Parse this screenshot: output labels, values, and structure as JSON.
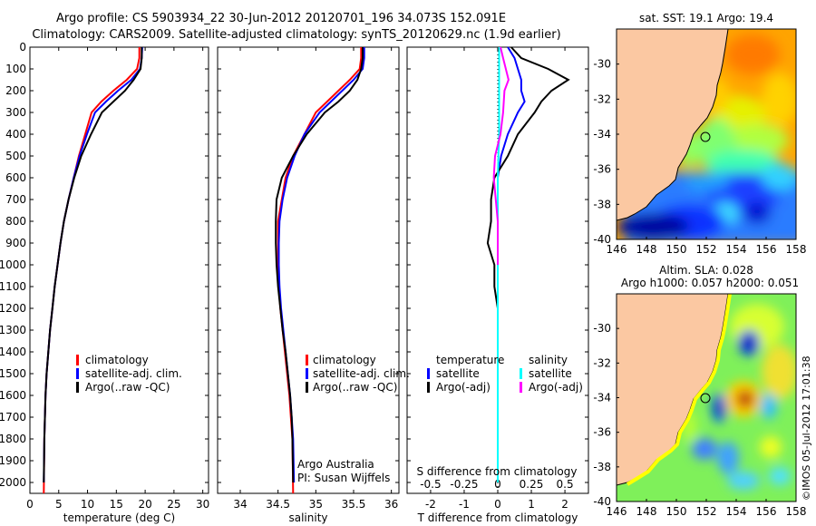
{
  "header": {
    "line1": "Argo profile: CS 5903934_22 30-Jun-2012 20120701_196 34.073S 152.091E",
    "line2": "Climatology: CARS2009. Satellite-adjusted climatology: synTS_20120629.nc (1.9d earlier)"
  },
  "footer": {
    "stamp": "©IMOS 05-Jul-2012 17:01:38"
  },
  "colors": {
    "climatology": "#ff0000",
    "satellite": "#0000ff",
    "argo": "#000000",
    "sat_diff_salinity": "#00ffff",
    "argo_diff_salinity": "#ff00ff",
    "land": "#fbc8a2"
  },
  "chart_data": [
    {
      "type": "line",
      "id": "temperature",
      "xlabel": "temperature (deg C)",
      "xlim": [
        0,
        31
      ],
      "xticks": [
        0,
        5,
        10,
        15,
        20,
        25,
        30
      ],
      "ylim": [
        2050,
        0
      ],
      "yticks": [
        0,
        100,
        200,
        300,
        400,
        500,
        600,
        700,
        800,
        900,
        1000,
        1100,
        1200,
        1300,
        1400,
        1500,
        1600,
        1700,
        1800,
        1900,
        2000
      ],
      "legend": {
        "placement": "lower-left",
        "entries": [
          "climatology",
          "satellite-adj. clim.",
          "Argo(..raw -QC)"
        ]
      },
      "series": [
        {
          "name": "climatology",
          "color": "#ff0000",
          "x": [
            19.0,
            19.0,
            18.6,
            16.8,
            14.5,
            12.4,
            10.7,
            9.6,
            8.5,
            7.6,
            6.7,
            5.9,
            5.3,
            4.8,
            4.3,
            3.9,
            3.5,
            3.2,
            2.9,
            2.7,
            2.5,
            2.4
          ],
          "y": [
            0,
            50,
            100,
            150,
            200,
            250,
            300,
            400,
            500,
            600,
            700,
            800,
            900,
            1000,
            1100,
            1200,
            1300,
            1400,
            1500,
            1600,
            1800,
            2050
          ]
        },
        {
          "name": "satellite-adj. clim.",
          "color": "#0000ff",
          "x": [
            19.5,
            19.4,
            19.1,
            17.6,
            15.3,
            13.2,
            11.3,
            9.9,
            8.6,
            7.6,
            6.7,
            5.9,
            5.3,
            4.8,
            4.3,
            3.9,
            3.5,
            3.2,
            2.9,
            2.7,
            2.5,
            2.4
          ],
          "y": [
            0,
            50,
            100,
            150,
            200,
            250,
            300,
            400,
            500,
            600,
            700,
            800,
            900,
            1000,
            1100,
            1200,
            1300,
            1400,
            1500,
            1600,
            1800,
            2000
          ]
        },
        {
          "name": "Argo(..raw -QC)",
          "color": "#000000",
          "x": [
            19.4,
            19.4,
            19.2,
            18.0,
            16.5,
            14.5,
            12.5,
            10.6,
            8.9,
            7.7,
            6.7,
            5.9,
            5.3,
            4.8,
            4.3,
            3.9,
            3.5,
            3.2,
            2.9,
            2.7,
            2.5,
            2.4
          ],
          "y": [
            0,
            50,
            100,
            150,
            200,
            250,
            300,
            400,
            500,
            600,
            700,
            800,
            900,
            1000,
            1100,
            1200,
            1300,
            1400,
            1500,
            1600,
            1800,
            2000
          ]
        }
      ]
    },
    {
      "type": "line",
      "id": "salinity",
      "xlabel": "salinity",
      "xlim": [
        33.7,
        36.1
      ],
      "xticks": [
        34,
        34.5,
        35,
        35.5,
        36
      ],
      "xticklabels": [
        "34",
        "34.5",
        "35",
        "35.5",
        "36"
      ],
      "ylim": [
        2050,
        0
      ],
      "legend": {
        "placement": "lower-right",
        "entries": [
          "climatology",
          "satellite-adj. clim.",
          "Argo(..raw -QC)"
        ]
      },
      "annotations": [
        "Argo Australia",
        "PI: Susan Wijffels"
      ],
      "series": [
        {
          "name": "climatology",
          "color": "#ff0000",
          "x": [
            35.6,
            35.6,
            35.58,
            35.45,
            35.3,
            35.15,
            35.0,
            34.85,
            34.7,
            34.6,
            34.55,
            34.5,
            34.5,
            34.5,
            34.51,
            34.53,
            34.56,
            34.59,
            34.62,
            34.65,
            34.67,
            34.69,
            34.7
          ],
          "y": [
            0,
            50,
            100,
            150,
            200,
            250,
            300,
            400,
            500,
            600,
            700,
            800,
            900,
            1000,
            1100,
            1200,
            1300,
            1400,
            1500,
            1600,
            1700,
            1800,
            2050
          ]
        },
        {
          "name": "satellite-adj. clim.",
          "color": "#0000ff",
          "x": [
            35.64,
            35.64,
            35.62,
            35.5,
            35.35,
            35.2,
            35.05,
            34.85,
            34.72,
            34.62,
            34.56,
            34.52,
            34.51,
            34.51,
            34.52,
            34.54,
            34.57,
            34.6,
            34.63,
            34.66,
            34.68,
            34.7,
            34.71
          ],
          "y": [
            0,
            50,
            100,
            150,
            200,
            250,
            300,
            400,
            500,
            600,
            700,
            800,
            900,
            1000,
            1100,
            1200,
            1300,
            1400,
            1500,
            1600,
            1700,
            1800,
            2000
          ]
        },
        {
          "name": "Argo(..raw -QC)",
          "color": "#000000",
          "x": [
            35.62,
            35.62,
            35.6,
            35.55,
            35.45,
            35.3,
            35.12,
            34.88,
            34.7,
            34.55,
            34.48,
            34.47,
            34.47,
            34.48,
            34.5,
            34.53,
            34.56,
            34.6,
            34.63,
            34.66,
            34.68,
            34.69,
            34.7
          ],
          "y": [
            0,
            50,
            100,
            150,
            200,
            250,
            300,
            400,
            500,
            600,
            700,
            800,
            900,
            1000,
            1100,
            1200,
            1300,
            1400,
            1500,
            1600,
            1700,
            1800,
            2000
          ]
        }
      ]
    },
    {
      "type": "line",
      "id": "difference",
      "xlabel": "T difference from climatology",
      "xlim": [
        -2.7,
        2.7
      ],
      "xticks": [
        -2,
        -1,
        0,
        1,
        2
      ],
      "ylim": [
        2050,
        0
      ],
      "top_axis_label": "S difference from climatology",
      "top_ticks": [
        -0.5,
        -0.25,
        0,
        0.25,
        0.5
      ],
      "top_ticklabels": [
        "-0.5",
        "-0.25",
        "0",
        "0.25",
        "0.5"
      ],
      "legend": {
        "placement": "lower",
        "groups": [
          {
            "title": "temperature",
            "entries": [
              "satellite",
              "Argo(-adj)"
            ]
          },
          {
            "title": "salinity",
            "entries": [
              "satellite",
              "Argo(-adj)"
            ]
          }
        ]
      },
      "series": [
        {
          "name": "satellite",
          "group": "temperature",
          "color": "#0000ff",
          "x": [
            0.3,
            0.5,
            0.6,
            0.7,
            0.7,
            0.8,
            0.6,
            0.3,
            0.1,
            0.0,
            0.0,
            0.0,
            0.0,
            0.0,
            0.0,
            0.0
          ],
          "y": [
            0,
            50,
            100,
            150,
            200,
            250,
            300,
            400,
            500,
            600,
            700,
            800,
            1000,
            1200,
            1600,
            2000
          ]
        },
        {
          "name": "Argo(-adj)",
          "group": "temperature",
          "color": "#000000",
          "x": [
            0.4,
            0.7,
            1.5,
            2.1,
            1.6,
            1.3,
            1.1,
            0.6,
            0.3,
            -0.1,
            -0.2,
            -0.2,
            -0.3,
            -0.1,
            -0.1,
            0.0,
            0.0,
            0.0,
            0.0,
            0.0
          ],
          "y": [
            0,
            50,
            100,
            150,
            200,
            250,
            300,
            400,
            500,
            600,
            700,
            800,
            900,
            1000,
            1100,
            1200,
            1400,
            1600,
            1800,
            2000
          ]
        },
        {
          "name": "satellite",
          "group": "salinity",
          "color": "#00ffff",
          "x": [
            0.01,
            0.01,
            0.01,
            0.01,
            0.0,
            0.0,
            0.0,
            0.0
          ],
          "y": [
            0,
            100,
            200,
            400,
            600,
            800,
            1000,
            2000
          ]
        },
        {
          "name": "Argo(-adj)",
          "group": "salinity",
          "color": "#ff00ff",
          "x": [
            0.02,
            0.04,
            0.06,
            0.08,
            0.05,
            0.04,
            0.02,
            -0.02,
            -0.03,
            0.0,
            0.0
          ],
          "y": [
            0,
            50,
            100,
            150,
            200,
            300,
            400,
            500,
            600,
            800,
            1000
          ]
        }
      ]
    },
    {
      "type": "heatmap",
      "id": "sst_map",
      "title": "sat. SST: 19.1  Argo: 19.4",
      "xlim": [
        146,
        158
      ],
      "ylim": [
        -40,
        -28
      ],
      "xticks": [
        146,
        148,
        150,
        152,
        154,
        156,
        158
      ],
      "yticks": [
        -30,
        -32,
        -34,
        -36,
        -38,
        -40
      ],
      "marker": {
        "lon": 152.091,
        "lat": -34.073
      }
    },
    {
      "type": "heatmap",
      "id": "sla_map",
      "title": "Altim. SLA: 0.028",
      "subtitle": "Argo h1000: 0.057 h2000: 0.051",
      "xlim": [
        146,
        158
      ],
      "ylim": [
        -40,
        -28
      ],
      "xticks": [
        146,
        148,
        150,
        152,
        154,
        156,
        158
      ],
      "yticks": [
        -30,
        -32,
        -34,
        -36,
        -38,
        -40
      ],
      "marker": {
        "lon": 152.091,
        "lat": -34.073
      }
    }
  ]
}
